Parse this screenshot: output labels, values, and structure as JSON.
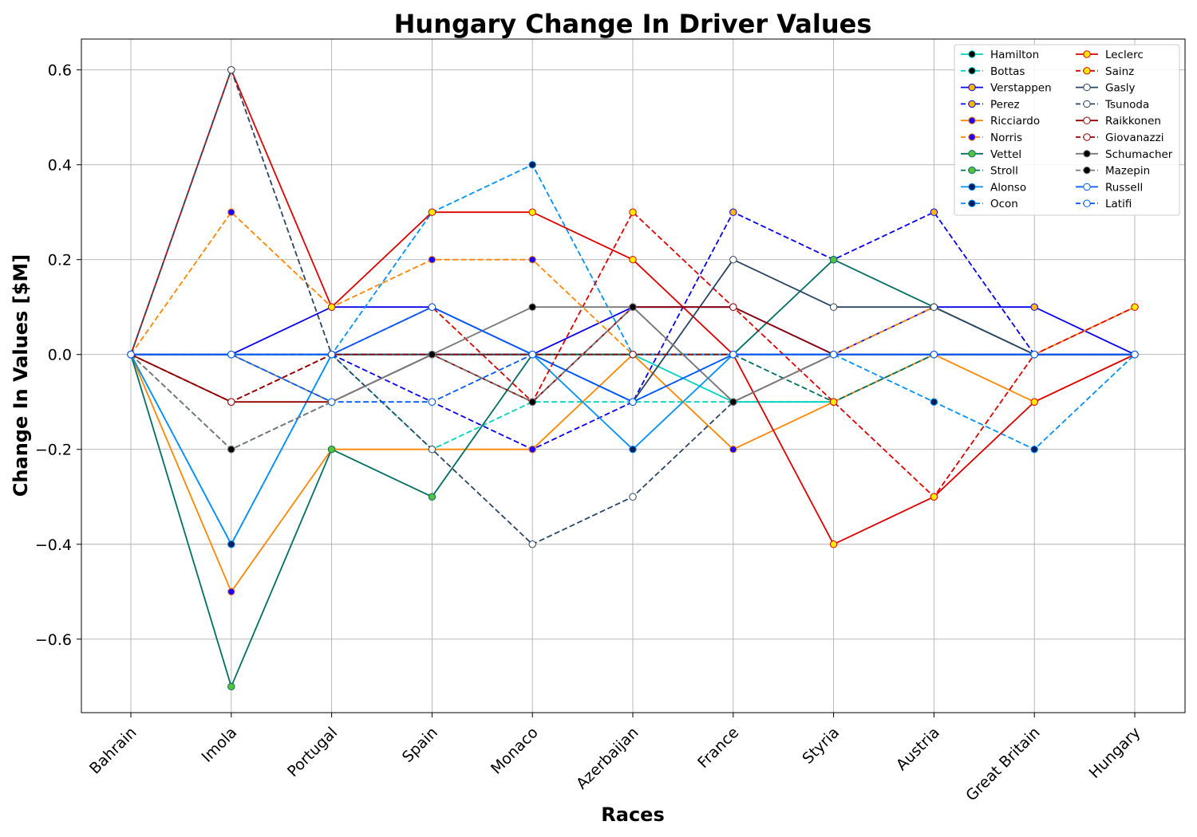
{
  "chart_data": {
    "type": "line",
    "title": "Hungary Change In Driver Values",
    "xlabel": "Races",
    "ylabel": "Change In Values [$M]",
    "categories": [
      "Bahrain",
      "Imola",
      "Portugal",
      "Spain",
      "Monaco",
      "Azerbaijan",
      "France",
      "Styria",
      "Austria",
      "Great Britain",
      "Hungary"
    ],
    "ylim": [
      -0.755,
      0.665
    ],
    "yticks": [
      -0.6,
      -0.4,
      -0.2,
      0.0,
      0.2,
      0.4,
      0.6
    ],
    "ytick_labels": [
      "−0.6",
      "−0.4",
      "−0.2",
      "0.0",
      "0.2",
      "0.4",
      "0.6"
    ],
    "grid": true,
    "legend_position": "top-right",
    "legend_columns": 2,
    "series": [
      {
        "name": "Hamilton",
        "color": "#00D2BE",
        "dash": false,
        "marker_fill": "#000000",
        "marker_edge": "#00D2BE",
        "values": [
          0,
          0,
          0,
          0,
          0,
          0,
          -0.1,
          -0.1,
          0,
          0,
          0
        ]
      },
      {
        "name": "Bottas",
        "color": "#00D2BE",
        "dash": true,
        "marker_fill": "#000000",
        "marker_edge": "#00D2BE",
        "values": [
          0,
          0,
          0,
          -0.2,
          -0.1,
          -0.1,
          -0.1,
          -0.1,
          0,
          0,
          0
        ]
      },
      {
        "name": "Verstappen",
        "color": "#0600EF",
        "dash": false,
        "marker_fill": "#FFB800",
        "marker_edge": "#0600EF",
        "values": [
          0,
          0,
          0.1,
          0.1,
          0,
          0.1,
          0.1,
          0,
          0.1,
          0.1,
          0
        ]
      },
      {
        "name": "Perez",
        "color": "#0600EF",
        "dash": true,
        "marker_fill": "#FFB800",
        "marker_edge": "#0600EF",
        "values": [
          0,
          0,
          0,
          -0.1,
          -0.2,
          -0.1,
          0.3,
          0.2,
          0.3,
          0,
          0
        ]
      },
      {
        "name": "Ricciardo",
        "color": "#FF8700",
        "dash": false,
        "marker_fill": "#1E00FF",
        "marker_edge": "#FF8700",
        "values": [
          0,
          -0.5,
          -0.2,
          -0.2,
          -0.2,
          0,
          -0.2,
          -0.1,
          0,
          -0.1,
          0
        ]
      },
      {
        "name": "Norris",
        "color": "#FF8700",
        "dash": true,
        "marker_fill": "#1E00FF",
        "marker_edge": "#FF8700",
        "values": [
          0,
          0.3,
          0.1,
          0.2,
          0.2,
          0,
          0,
          0,
          0.1,
          0,
          0.1
        ]
      },
      {
        "name": "Vettel",
        "color": "#006F62",
        "dash": false,
        "marker_fill": "#56C23F",
        "marker_edge": "#006F62",
        "values": [
          0,
          -0.7,
          -0.2,
          -0.3,
          0,
          0,
          0,
          0.2,
          0.1,
          0,
          0
        ]
      },
      {
        "name": "Stroll",
        "color": "#006F62",
        "dash": true,
        "marker_fill": "#56C23F",
        "marker_edge": "#006F62",
        "values": [
          0,
          -0.2,
          -0.1,
          0,
          0,
          0,
          0,
          -0.1,
          0,
          0,
          0
        ]
      },
      {
        "name": "Alonso",
        "color": "#0090FF",
        "dash": false,
        "marker_fill": "#00205B",
        "marker_edge": "#0090FF",
        "values": [
          0,
          -0.4,
          0,
          0,
          0,
          -0.2,
          0,
          0,
          0,
          0,
          0
        ]
      },
      {
        "name": "Ocon",
        "color": "#0090FF",
        "dash": true,
        "marker_fill": "#00205B",
        "marker_edge": "#0090FF",
        "values": [
          0,
          -0.4,
          0,
          0.3,
          0.4,
          0,
          0,
          0,
          -0.1,
          -0.2,
          0
        ]
      },
      {
        "name": "Leclerc",
        "color": "#DC0000",
        "dash": false,
        "marker_fill": "#FFEB00",
        "marker_edge": "#DC0000",
        "values": [
          0,
          0.6,
          0.1,
          0.3,
          0.3,
          0.2,
          0,
          -0.4,
          -0.3,
          -0.1,
          0
        ]
      },
      {
        "name": "Sainz",
        "color": "#DC0000",
        "dash": true,
        "marker_fill": "#FFEB00",
        "marker_edge": "#DC0000",
        "values": [
          0,
          -0.1,
          0,
          0.1,
          -0.1,
          0.3,
          0.1,
          -0.1,
          -0.3,
          0,
          0.1
        ]
      },
      {
        "name": "Gasly",
        "color": "#2B4562",
        "dash": false,
        "marker_fill": "#FFFFFF",
        "marker_edge": "#2B4562",
        "values": [
          0,
          0,
          0,
          0,
          0,
          -0.1,
          0.2,
          0.1,
          0.1,
          0,
          0
        ]
      },
      {
        "name": "Tsunoda",
        "color": "#2B4562",
        "dash": true,
        "marker_fill": "#FFFFFF",
        "marker_edge": "#2B4562",
        "values": [
          0,
          0.6,
          0,
          -0.2,
          -0.4,
          -0.3,
          -0.1,
          0,
          0,
          0,
          0
        ]
      },
      {
        "name": "Raikkonen",
        "color": "#900000",
        "dash": false,
        "marker_fill": "#FFFFFF",
        "marker_edge": "#900000",
        "values": [
          0,
          -0.1,
          -0.1,
          0,
          -0.1,
          0.1,
          0.1,
          0,
          0,
          0,
          0
        ]
      },
      {
        "name": "Giovanazzi",
        "color": "#900000",
        "dash": true,
        "marker_fill": "#FFFFFF",
        "marker_edge": "#900000",
        "values": [
          0,
          -0.1,
          0,
          0,
          0,
          0,
          0,
          0,
          0,
          0,
          0
        ]
      },
      {
        "name": "Schumacher",
        "color": "#787878",
        "dash": false,
        "marker_fill": "#000000",
        "marker_edge": "#787878",
        "values": [
          0,
          0,
          -0.1,
          0,
          0.1,
          0.1,
          -0.1,
          0,
          0,
          0,
          0
        ]
      },
      {
        "name": "Mazepin",
        "color": "#787878",
        "dash": true,
        "marker_fill": "#000000",
        "marker_edge": "#787878",
        "values": [
          0,
          -0.2,
          -0.1,
          0,
          -0.1,
          0.1,
          -0.1,
          0,
          0,
          0,
          0
        ]
      },
      {
        "name": "Russell",
        "color": "#005AFF",
        "dash": false,
        "marker_fill": "#FFFFFF",
        "marker_edge": "#005AFF",
        "values": [
          0,
          0,
          0,
          0.1,
          0,
          -0.1,
          0,
          0,
          0,
          0,
          0
        ]
      },
      {
        "name": "Latifi",
        "color": "#005AFF",
        "dash": true,
        "marker_fill": "#FFFFFF",
        "marker_edge": "#005AFF",
        "values": [
          0,
          0,
          -0.1,
          -0.1,
          0,
          -0.1,
          0,
          0,
          0,
          0,
          0
        ]
      }
    ]
  }
}
